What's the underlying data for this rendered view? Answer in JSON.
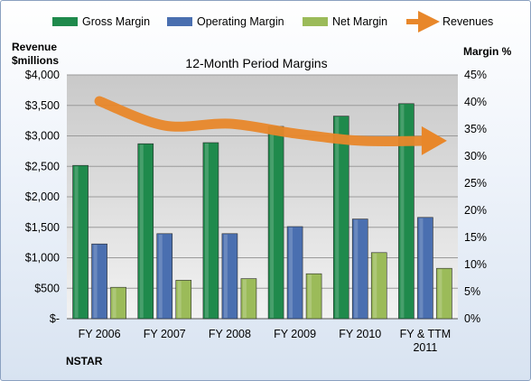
{
  "chart_data": {
    "type": "bar",
    "title": "12-Month Period Margins",
    "company": "NSTAR",
    "categories": [
      "FY 2006",
      "FY 2007",
      "FY 2008",
      "FY 2009",
      "FY 2010",
      "FY & TTM 2011"
    ],
    "y_left": {
      "label": [
        "Revenue",
        "$millions"
      ],
      "ticks": [
        "$-",
        "$500",
        "$1,000",
        "$1,500",
        "$2,000",
        "$2,500",
        "$3,000",
        "$3,500",
        "$4,000"
      ],
      "ylim": [
        0,
        4000
      ]
    },
    "y_right": {
      "label": "Margin %",
      "ticks": [
        "0%",
        "5%",
        "10%",
        "15%",
        "20%",
        "25%",
        "30%",
        "35%",
        "40%",
        "45%"
      ],
      "ylim": [
        0,
        45
      ]
    },
    "series": [
      {
        "name": "Gross Margin",
        "axis": "right",
        "type": "bar",
        "color": "#1f8a4c",
        "values": [
          28.3,
          32.3,
          32.5,
          35.5,
          37.4,
          39.7
        ]
      },
      {
        "name": "Operating Margin",
        "axis": "right",
        "type": "bar",
        "color": "#4a6fb0",
        "values": [
          13.8,
          15.7,
          15.7,
          17.0,
          18.4,
          18.7
        ]
      },
      {
        "name": "Net Margin",
        "axis": "right",
        "type": "bar",
        "color": "#9bbb59",
        "values": [
          5.8,
          7.1,
          7.4,
          8.3,
          12.2,
          9.3
        ]
      },
      {
        "name": "Revenues",
        "axis": "left",
        "type": "line",
        "color": "#e8872a",
        "values": [
          3570,
          3170,
          3200,
          3040,
          2920,
          2920
        ]
      }
    ],
    "grid": true,
    "legend": "top"
  }
}
